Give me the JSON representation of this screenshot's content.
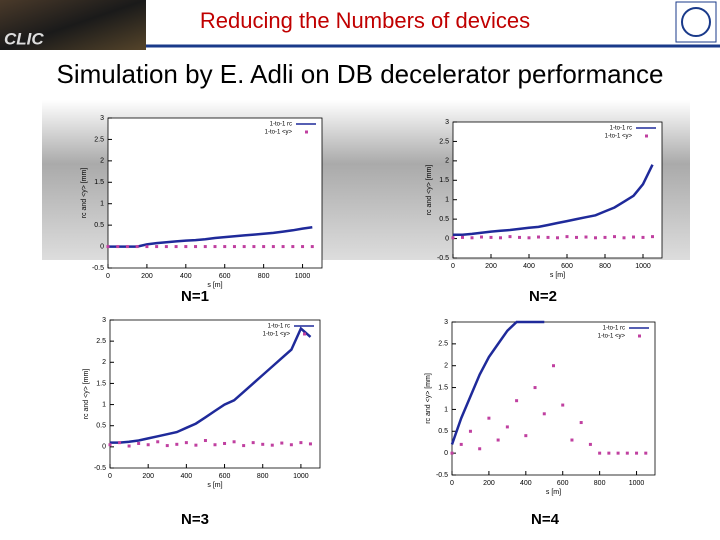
{
  "header": {
    "title": "Reducing the Numbers of devices",
    "logo_text": "CLIC",
    "subtitle": "Simulation by E. Adli on DB decelerator performance"
  },
  "chart_data": [
    {
      "type": "line",
      "label": "N=1",
      "xlabel": "s [m]",
      "ylabel": "rc and <y> [mm]",
      "x": [
        0,
        50,
        100,
        150,
        200,
        250,
        300,
        350,
        400,
        450,
        500,
        550,
        600,
        650,
        700,
        750,
        800,
        850,
        900,
        950,
        1000,
        1050
      ],
      "xlim": [
        0,
        1100
      ],
      "ylim": [
        -0.5,
        3
      ],
      "xticks": [
        0,
        200,
        400,
        600,
        800,
        1000
      ],
      "yticks": [
        -0.5,
        0,
        0.5,
        1,
        1.5,
        2,
        2.5,
        3
      ],
      "series": [
        {
          "name": "1-to-1 rc",
          "color": "#1f2a9a",
          "style": "line",
          "values": [
            0,
            0,
            0,
            0,
            0.05,
            0.08,
            0.1,
            0.12,
            0.14,
            0.15,
            0.17,
            0.2,
            0.22,
            0.24,
            0.26,
            0.28,
            0.3,
            0.32,
            0.35,
            0.38,
            0.42,
            0.45
          ]
        },
        {
          "name": "1-to-1 <y>",
          "color": "#c040a0",
          "style": "points",
          "values": [
            0,
            0,
            0,
            0,
            0,
            0,
            0,
            0,
            0,
            0,
            0,
            0,
            0,
            0,
            0,
            0,
            0,
            0,
            0,
            0,
            0,
            0
          ]
        }
      ]
    },
    {
      "type": "line",
      "label": "N=2",
      "xlabel": "s [m]",
      "ylabel": "rc and <y> [mm]",
      "x": [
        0,
        50,
        100,
        150,
        200,
        250,
        300,
        350,
        400,
        450,
        500,
        550,
        600,
        650,
        700,
        750,
        800,
        850,
        900,
        950,
        1000,
        1050
      ],
      "xlim": [
        0,
        1100
      ],
      "ylim": [
        -0.5,
        3
      ],
      "xticks": [
        0,
        200,
        400,
        600,
        800,
        1000
      ],
      "yticks": [
        -0.5,
        0,
        0.5,
        1,
        1.5,
        2,
        2.5,
        3
      ],
      "series": [
        {
          "name": "1-to-1 rc",
          "color": "#1f2a9a",
          "style": "line",
          "values": [
            0.1,
            0.1,
            0.12,
            0.15,
            0.18,
            0.2,
            0.22,
            0.25,
            0.28,
            0.3,
            0.35,
            0.4,
            0.45,
            0.5,
            0.55,
            0.6,
            0.7,
            0.8,
            0.95,
            1.1,
            1.4,
            1.9
          ]
        },
        {
          "name": "1-to-1 <y>",
          "color": "#c040a0",
          "style": "points",
          "values": [
            0.02,
            0.03,
            0.02,
            0.04,
            0.03,
            0.02,
            0.05,
            0.03,
            0.02,
            0.04,
            0.03,
            0.02,
            0.05,
            0.03,
            0.04,
            0.02,
            0.03,
            0.05,
            0.02,
            0.04,
            0.03,
            0.05
          ]
        }
      ]
    },
    {
      "type": "line",
      "label": "N=3",
      "xlabel": "s [m]",
      "ylabel": "rc and <y> [mm]",
      "x": [
        0,
        50,
        100,
        150,
        200,
        250,
        300,
        350,
        400,
        450,
        500,
        550,
        600,
        650,
        700,
        750,
        800,
        850,
        900,
        950,
        1000,
        1050
      ],
      "xlim": [
        0,
        1100
      ],
      "ylim": [
        -0.5,
        3
      ],
      "xticks": [
        0,
        200,
        400,
        600,
        800,
        1000
      ],
      "yticks": [
        -0.5,
        0,
        0.5,
        1,
        1.5,
        2,
        2.5,
        3
      ],
      "series": [
        {
          "name": "1-to-1 rc",
          "color": "#1f2a9a",
          "style": "line",
          "values": [
            0.1,
            0.1,
            0.12,
            0.15,
            0.2,
            0.25,
            0.3,
            0.35,
            0.45,
            0.55,
            0.7,
            0.85,
            1.0,
            1.1,
            1.3,
            1.5,
            1.7,
            1.9,
            2.1,
            2.3,
            2.8,
            2.6
          ]
        },
        {
          "name": "1-to-1 <y>",
          "color": "#c040a0",
          "style": "points",
          "values": [
            0.05,
            0.1,
            0.02,
            0.08,
            0.05,
            0.12,
            0.03,
            0.06,
            0.1,
            0.04,
            0.15,
            0.05,
            0.08,
            0.12,
            0.03,
            0.1,
            0.06,
            0.04,
            0.09,
            0.05,
            0.1,
            0.07
          ]
        }
      ]
    },
    {
      "type": "line",
      "label": "N=4",
      "xlabel": "s [m]",
      "ylabel": "rc and <y> [mm]",
      "x": [
        0,
        50,
        100,
        150,
        200,
        250,
        300,
        350,
        400,
        450,
        500,
        550,
        600,
        650,
        700,
        750,
        800,
        850,
        900,
        950,
        1000,
        1050
      ],
      "xlim": [
        0,
        1100
      ],
      "ylim": [
        -0.5,
        3
      ],
      "xticks": [
        0,
        200,
        400,
        600,
        800,
        1000
      ],
      "yticks": [
        -0.5,
        0,
        0.5,
        1,
        1.5,
        2,
        2.5,
        3
      ],
      "series": [
        {
          "name": "1-to-1 rc",
          "color": "#1f2a9a",
          "style": "line",
          "values": [
            0.2,
            0.8,
            1.3,
            1.8,
            2.2,
            2.5,
            2.8,
            3,
            3,
            3,
            3,
            null,
            null,
            null,
            null,
            null,
            null,
            null,
            null,
            null,
            null,
            null
          ]
        },
        {
          "name": "1-to-1 <y>",
          "color": "#c040a0",
          "style": "points",
          "values": [
            0,
            0.2,
            0.5,
            0.1,
            0.8,
            0.3,
            0.6,
            1.2,
            0.4,
            1.5,
            0.9,
            2.0,
            1.1,
            0.3,
            0.7,
            0.2,
            0,
            0,
            0,
            0,
            0,
            0
          ]
        }
      ]
    }
  ]
}
